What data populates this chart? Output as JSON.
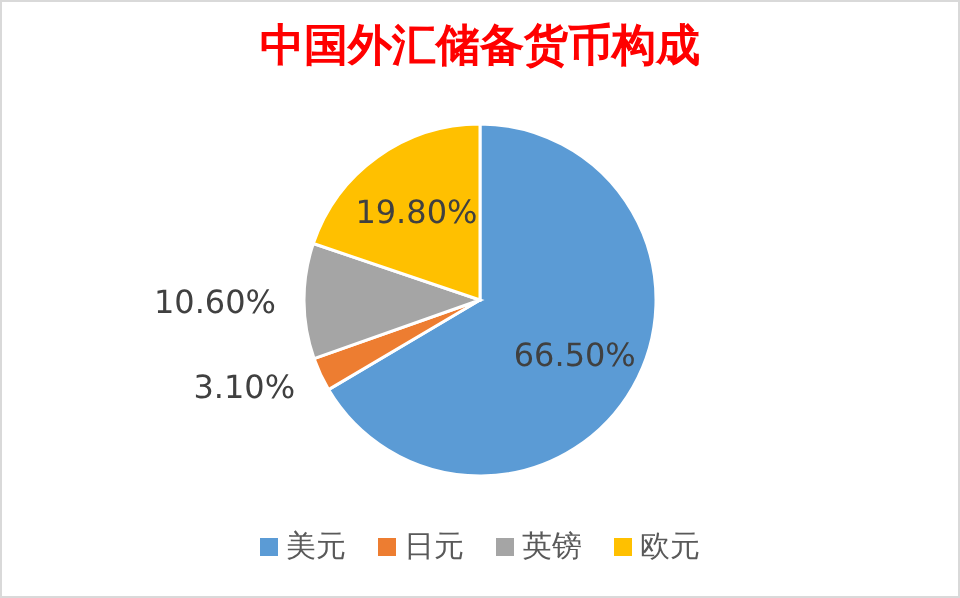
{
  "chart_data": {
    "type": "pie",
    "title": "中国外汇储备货币构成",
    "categories": [
      "美元",
      "日元",
      "英镑",
      "欧元"
    ],
    "values": [
      66.5,
      3.1,
      10.6,
      19.8
    ],
    "colors": [
      "#5b9bd5",
      "#ed7d31",
      "#a5a5a5",
      "#ffc000"
    ],
    "value_labels": [
      "66.50%",
      "3.10%",
      "10.60%",
      "19.80%"
    ],
    "legend": "bottom"
  }
}
